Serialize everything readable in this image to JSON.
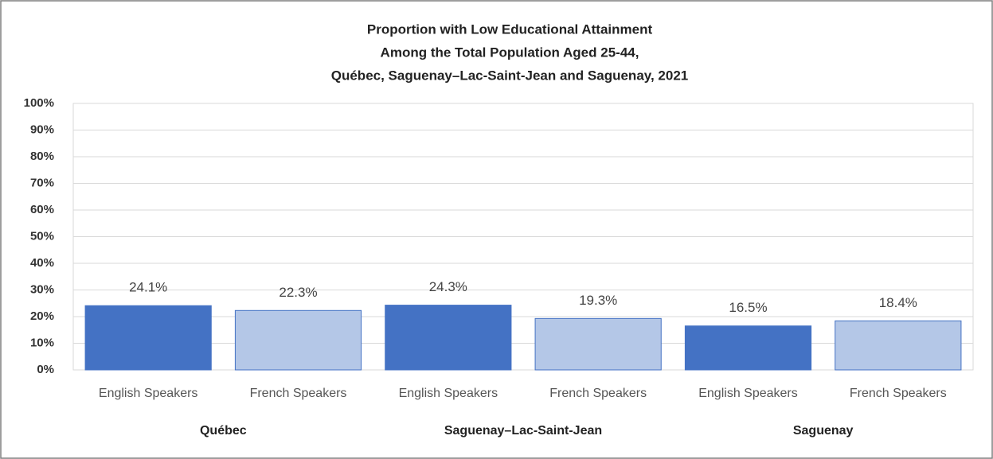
{
  "chart_data": {
    "type": "bar",
    "title": [
      "Proportion with Low Educational  Attainment",
      "Among the Total Population  Aged 25-44,",
      "Québec, Saguenay–Lac-Saint-Jean  and Saguenay,  2021"
    ],
    "categories": [
      "English Speakers",
      "French Speakers",
      "English Speakers",
      "French Speakers",
      "English Speakers",
      "French Speakers"
    ],
    "groups": [
      "Québec",
      "Saguenay–Lac-Saint-Jean",
      "Saguenay"
    ],
    "values": [
      24.1,
      22.3,
      24.3,
      19.3,
      16.5,
      18.4
    ],
    "value_labels": [
      "24.1%",
      "22.3%",
      "24.3%",
      "19.3%",
      "16.5%",
      "18.4%"
    ],
    "colors": [
      "#4472c4",
      "#b4c7e7",
      "#4472c4",
      "#b4c7e7",
      "#4472c4",
      "#b4c7e7"
    ],
    "ylim": [
      0,
      100
    ],
    "yticks": [
      {
        "value": 0,
        "label": "0%"
      },
      {
        "value": 10,
        "label": "10%"
      },
      {
        "value": 20,
        "label": "20%"
      },
      {
        "value": 30,
        "label": "30%"
      },
      {
        "value": 40,
        "label": "40%"
      },
      {
        "value": 50,
        "label": "50%"
      },
      {
        "value": 60,
        "label": "60%"
      },
      {
        "value": 70,
        "label": "70%"
      },
      {
        "value": 80,
        "label": "80%"
      },
      {
        "value": 90,
        "label": "90%"
      },
      {
        "value": 100,
        "label": "100%"
      }
    ],
    "grid": true
  }
}
